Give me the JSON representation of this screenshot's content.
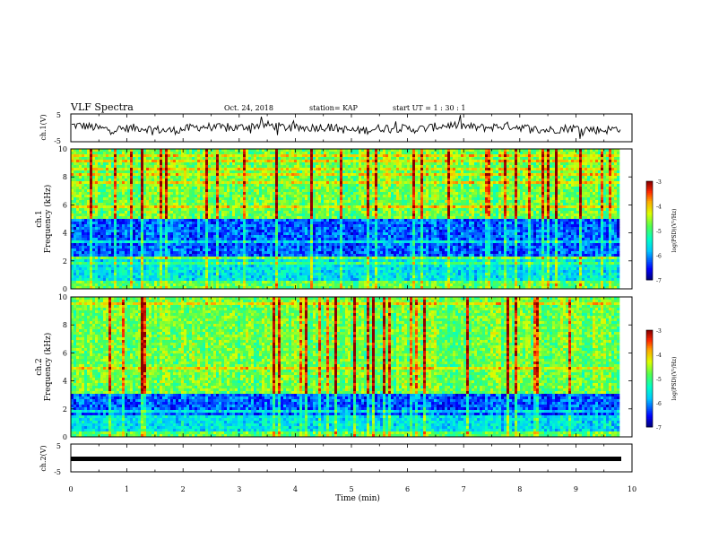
{
  "header": {
    "title": "VLF Spectra",
    "date": "Oct. 24, 2018",
    "station": "station= KAP",
    "start": "start  UT =   1 : 30 : 1"
  },
  "chart_data": [
    {
      "type": "line",
      "ylabel": "ch.1(V)",
      "ylim": [
        -5,
        5
      ],
      "yticks": [
        "5",
        "-5"
      ],
      "series": [
        {
          "values_note_free": true
        }
      ]
    },
    {
      "type": "heatmap",
      "ylabel": "ch.1\nFrequency (kHz)",
      "ylim": [
        0,
        10
      ],
      "yticks": [
        "0",
        "2",
        "4",
        "6",
        "8",
        "10"
      ],
      "colorbar": {
        "label": "log(PSD)(V²/Hz)",
        "ticks": [
          "-3",
          "-4",
          "-5",
          "-6",
          "-7"
        ],
        "range": [
          -7,
          -3
        ]
      },
      "dark_band_khz": [
        2.4,
        5.0
      ],
      "cyan_band_khz": [
        0.6,
        2.1
      ]
    },
    {
      "type": "heatmap",
      "ylabel": "ch.2\nFrequency (kHz)",
      "ylim": [
        0,
        10
      ],
      "yticks": [
        "0",
        "2",
        "4",
        "6",
        "8",
        "10"
      ],
      "colorbar": {
        "label": "log(PSD)(V²/Hz)",
        "ticks": [
          "-3",
          "-4",
          "-5",
          "-6",
          "-7"
        ],
        "range": [
          -7,
          -3
        ]
      },
      "dark_band_khz": [
        1.6,
        3.0
      ],
      "cyan_band_khz": [
        0.4,
        1.6
      ]
    },
    {
      "type": "line",
      "ylabel": "ch.2(V)",
      "ylim": [
        -5,
        5
      ],
      "yticks": [
        "5",
        "-5"
      ],
      "series": [
        {
          "values": [
            -0.8,
            -0.8
          ]
        }
      ]
    }
  ],
  "xaxis": {
    "xlabel": "Time (min)",
    "xlim": [
      0,
      10
    ],
    "ticks": [
      "0",
      "1",
      "2",
      "3",
      "4",
      "5",
      "6",
      "7",
      "8",
      "9",
      "10"
    ]
  }
}
